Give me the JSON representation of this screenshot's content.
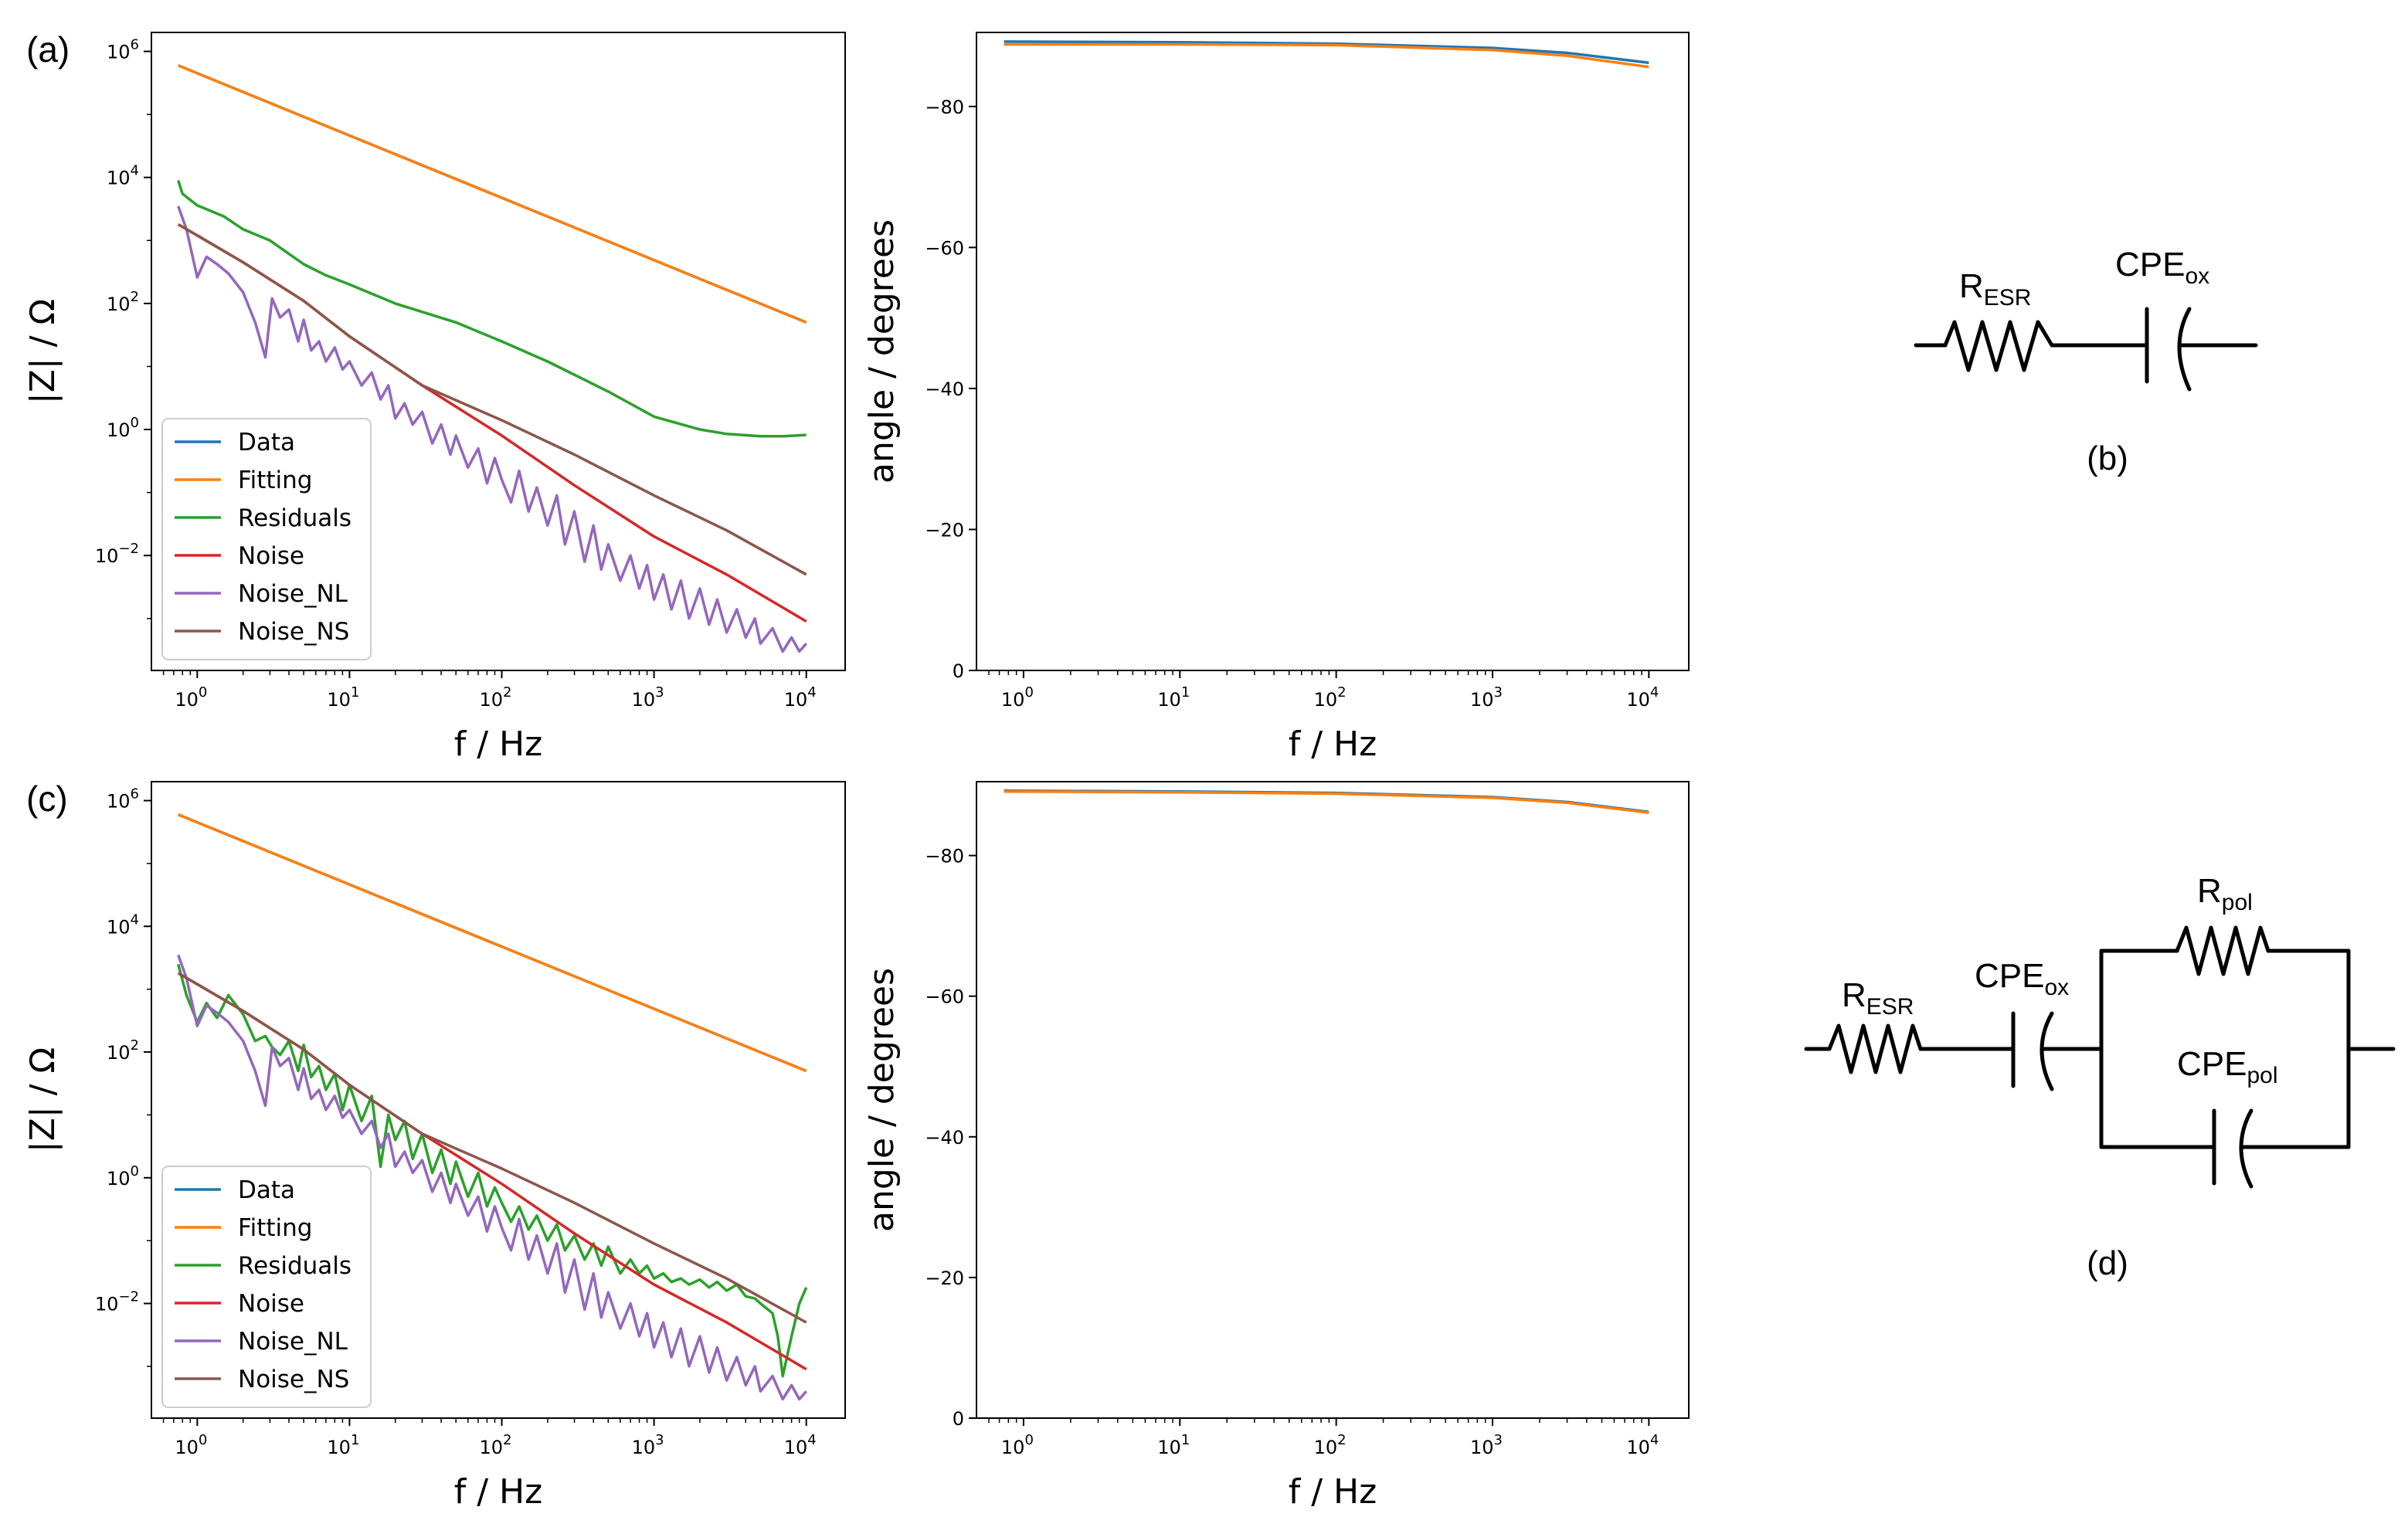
{
  "colors": {
    "Data": "#1f77b4",
    "Fitting": "#ff7f0e",
    "Residuals": "#2ca02c",
    "Noise": "#d62728",
    "Noise_NL": "#9467bd",
    "Noise_NS": "#8c564b"
  },
  "chart_data": [
    {
      "id": "a-mag",
      "panel": "(a)",
      "type": "line",
      "xscale": "log",
      "yscale": "log",
      "xlabel": "f / Hz",
      "ylabel": "|Z| / Ω",
      "xlim": [
        0.5,
        18000
      ],
      "ylim": [
        0.00015,
        2000000
      ],
      "xticks": [
        {
          "base": "10",
          "exp": "0",
          "v": 1
        },
        {
          "base": "10",
          "exp": "1",
          "v": 10
        },
        {
          "base": "10",
          "exp": "2",
          "v": 100
        },
        {
          "base": "10",
          "exp": "3",
          "v": 1000
        },
        {
          "base": "10",
          "exp": "4",
          "v": 10000
        }
      ],
      "yticks": [
        {
          "base": "10",
          "exp": "−2",
          "v": 0.01
        },
        {
          "base": "10",
          "exp": "0",
          "v": 1
        },
        {
          "base": "10",
          "exp": "2",
          "v": 100
        },
        {
          "base": "10",
          "exp": "4",
          "v": 10000
        },
        {
          "base": "10",
          "exp": "6",
          "v": 1000000
        }
      ],
      "legend": {
        "position": "lower-left",
        "entries": [
          "Data",
          "Fitting",
          "Residuals",
          "Noise",
          "Noise_NL",
          "Noise_NS"
        ]
      },
      "series": [
        {
          "name": "Data",
          "x": [
            0.75,
            10000
          ],
          "y": [
            600000,
            50
          ]
        },
        {
          "name": "Fitting",
          "x": [
            0.75,
            10000
          ],
          "y": [
            600000,
            50
          ]
        },
        {
          "name": "Residuals",
          "x": [
            0.75,
            0.8,
            1,
            1.5,
            2,
            3,
            5,
            7,
            10,
            20,
            50,
            100,
            200,
            500,
            1000,
            2000,
            3000,
            5000,
            7000,
            10000
          ],
          "y": [
            9000,
            5500,
            3600,
            2400,
            1500,
            1000,
            420,
            280,
            200,
            100,
            50,
            25,
            12,
            4,
            1.6,
            1,
            0.85,
            0.78,
            0.78,
            0.82
          ]
        },
        {
          "name": "Noise",
          "x": [
            0.75,
            1,
            2,
            5,
            10,
            30,
            100,
            300,
            1000,
            3000,
            10000
          ],
          "y": [
            1800,
            1200,
            450,
            110,
            30,
            5,
            0.8,
            0.13,
            0.02,
            0.005,
            0.0009
          ]
        },
        {
          "name": "Noise_NL",
          "x": [
            0.75,
            0.85,
            1,
            1.15,
            1.35,
            1.6,
            2,
            2.4,
            2.8,
            3.1,
            3.5,
            4,
            4.6,
            5,
            5.6,
            6.3,
            7,
            8,
            9,
            10,
            12,
            14,
            16,
            18,
            20,
            23,
            26,
            30,
            35,
            40,
            46,
            50,
            60,
            70,
            80,
            90,
            100,
            115,
            130,
            150,
            170,
            200,
            230,
            260,
            300,
            350,
            400,
            450,
            500,
            600,
            700,
            800,
            900,
            1000,
            1150,
            1300,
            1500,
            1700,
            2000,
            2300,
            2600,
            3000,
            3500,
            4000,
            4600,
            5000,
            6000,
            7000,
            8000,
            9000,
            10000
          ],
          "y": [
            3500,
            1500,
            260,
            550,
            420,
            300,
            150,
            50,
            14,
            120,
            60,
            80,
            25,
            55,
            18,
            25,
            12,
            20,
            9,
            12,
            5,
            8,
            3,
            5,
            1.5,
            2.6,
            1.2,
            1.9,
            0.6,
            1.2,
            0.4,
            0.8,
            0.25,
            0.5,
            0.14,
            0.35,
            0.16,
            0.07,
            0.22,
            0.05,
            0.12,
            0.03,
            0.09,
            0.015,
            0.05,
            0.008,
            0.03,
            0.006,
            0.015,
            0.004,
            0.01,
            0.003,
            0.007,
            0.002,
            0.005,
            0.0014,
            0.004,
            0.001,
            0.003,
            0.0008,
            0.002,
            0.0006,
            0.0014,
            0.0005,
            0.001,
            0.0004,
            0.0007,
            0.0003,
            0.0005,
            0.0003,
            0.0004
          ]
        },
        {
          "name": "Noise_NS",
          "x": [
            0.75,
            1,
            2,
            5,
            10,
            30,
            100,
            300,
            1000,
            3000,
            10000
          ],
          "y": [
            1800,
            1200,
            450,
            110,
            30,
            5,
            1.4,
            0.4,
            0.09,
            0.025,
            0.005
          ]
        }
      ]
    },
    {
      "id": "a-phase",
      "panel": "",
      "type": "line",
      "xscale": "log",
      "yscale": "linear",
      "xlabel": "f / Hz",
      "ylabel": "angle / degrees",
      "xlim": [
        0.5,
        18000
      ],
      "ylim": [
        0,
        -90.5
      ],
      "xticks": [
        {
          "base": "10",
          "exp": "0",
          "v": 1
        },
        {
          "base": "10",
          "exp": "1",
          "v": 10
        },
        {
          "base": "10",
          "exp": "2",
          "v": 100
        },
        {
          "base": "10",
          "exp": "3",
          "v": 1000
        },
        {
          "base": "10",
          "exp": "4",
          "v": 10000
        }
      ],
      "yticks": [
        {
          "label": "0",
          "v": 0
        },
        {
          "label": "−20",
          "v": -20
        },
        {
          "label": "−40",
          "v": -40
        },
        {
          "label": "−60",
          "v": -60
        },
        {
          "label": "−80",
          "v": -80
        }
      ],
      "series": [
        {
          "name": "Data",
          "x": [
            0.75,
            10,
            100,
            1000,
            3000,
            10000
          ],
          "y": [
            -89.2,
            -89.1,
            -88.9,
            -88.3,
            -87.6,
            -86.2
          ]
        },
        {
          "name": "Fitting",
          "x": [
            0.75,
            10,
            100,
            1000,
            3000,
            10000
          ],
          "y": [
            -88.8,
            -88.8,
            -88.7,
            -88.0,
            -87.2,
            -85.6
          ]
        }
      ]
    },
    {
      "id": "c-mag",
      "panel": "(c)",
      "type": "line",
      "xscale": "log",
      "yscale": "log",
      "xlabel": "f / Hz",
      "ylabel": "|Z| / Ω",
      "xlim": [
        0.5,
        18000
      ],
      "ylim": [
        0.00015,
        2000000
      ],
      "xticks": [
        {
          "base": "10",
          "exp": "0",
          "v": 1
        },
        {
          "base": "10",
          "exp": "1",
          "v": 10
        },
        {
          "base": "10",
          "exp": "2",
          "v": 100
        },
        {
          "base": "10",
          "exp": "3",
          "v": 1000
        },
        {
          "base": "10",
          "exp": "4",
          "v": 10000
        }
      ],
      "yticks": [
        {
          "base": "10",
          "exp": "−2",
          "v": 0.01
        },
        {
          "base": "10",
          "exp": "0",
          "v": 1
        },
        {
          "base": "10",
          "exp": "2",
          "v": 100
        },
        {
          "base": "10",
          "exp": "4",
          "v": 10000
        },
        {
          "base": "10",
          "exp": "6",
          "v": 1000000
        }
      ],
      "legend": {
        "position": "lower-left",
        "entries": [
          "Data",
          "Fitting",
          "Residuals",
          "Noise",
          "Noise_NL",
          "Noise_NS"
        ]
      },
      "series": [
        {
          "name": "Data",
          "x": [
            0.75,
            10000
          ],
          "y": [
            600000,
            50
          ]
        },
        {
          "name": "Fitting",
          "x": [
            0.75,
            10000
          ],
          "y": [
            600000,
            50
          ]
        },
        {
          "name": "Residuals",
          "x": [
            0.75,
            0.85,
            1,
            1.15,
            1.35,
            1.6,
            2,
            2.4,
            2.8,
            3.1,
            3.5,
            4,
            4.6,
            5,
            5.6,
            6.3,
            7,
            8,
            9,
            10,
            12,
            14,
            16,
            18,
            20,
            23,
            26,
            30,
            35,
            40,
            46,
            50,
            60,
            70,
            80,
            90,
            100,
            115,
            130,
            150,
            170,
            200,
            230,
            260,
            300,
            350,
            400,
            450,
            500,
            600,
            700,
            800,
            900,
            1000,
            1150,
            1300,
            1500,
            1700,
            2000,
            2300,
            2600,
            3000,
            3500,
            4000,
            4600,
            5000,
            6000,
            6500,
            7000,
            8000,
            9000,
            10000
          ],
          "y": [
            2500,
            800,
            300,
            600,
            350,
            800,
            400,
            150,
            180,
            120,
            90,
            150,
            50,
            130,
            40,
            60,
            25,
            45,
            12,
            30,
            8,
            20,
            1.5,
            10,
            4,
            8,
            2,
            5,
            1.2,
            2.8,
            0.8,
            1.8,
            0.5,
            1.2,
            0.35,
            0.7,
            0.4,
            0.2,
            0.35,
            0.15,
            0.25,
            0.1,
            0.18,
            0.07,
            0.12,
            0.05,
            0.09,
            0.04,
            0.08,
            0.03,
            0.05,
            0.03,
            0.04,
            0.025,
            0.03,
            0.022,
            0.025,
            0.02,
            0.024,
            0.018,
            0.022,
            0.016,
            0.02,
            0.013,
            0.012,
            0.01,
            0.007,
            0.003,
            0.0007,
            0.003,
            0.01,
            0.018
          ]
        },
        {
          "name": "Noise",
          "x": [
            0.75,
            1,
            2,
            5,
            10,
            30,
            100,
            300,
            1000,
            3000,
            10000
          ],
          "y": [
            1800,
            1200,
            450,
            110,
            30,
            5,
            0.8,
            0.13,
            0.02,
            0.005,
            0.0009
          ]
        },
        {
          "name": "Noise_NL",
          "x": [
            0.75,
            0.85,
            1,
            1.15,
            1.35,
            1.6,
            2,
            2.4,
            2.8,
            3.1,
            3.5,
            4,
            4.6,
            5,
            5.6,
            6.3,
            7,
            8,
            9,
            10,
            12,
            14,
            16,
            18,
            20,
            23,
            26,
            30,
            35,
            40,
            46,
            50,
            60,
            70,
            80,
            90,
            100,
            115,
            130,
            150,
            170,
            200,
            230,
            260,
            300,
            350,
            400,
            450,
            500,
            600,
            700,
            800,
            900,
            1000,
            1150,
            1300,
            1500,
            1700,
            2000,
            2300,
            2600,
            3000,
            3500,
            4000,
            4600,
            5000,
            6000,
            7000,
            8000,
            9000,
            10000
          ],
          "y": [
            3500,
            1500,
            260,
            550,
            420,
            300,
            150,
            50,
            14,
            120,
            60,
            80,
            25,
            55,
            18,
            25,
            12,
            20,
            9,
            12,
            5,
            8,
            3,
            5,
            1.5,
            2.6,
            1.2,
            1.9,
            0.6,
            1.2,
            0.4,
            0.8,
            0.25,
            0.5,
            0.14,
            0.35,
            0.16,
            0.07,
            0.22,
            0.05,
            0.12,
            0.03,
            0.09,
            0.015,
            0.05,
            0.008,
            0.03,
            0.006,
            0.015,
            0.004,
            0.01,
            0.003,
            0.007,
            0.002,
            0.005,
            0.0014,
            0.004,
            0.001,
            0.003,
            0.0008,
            0.002,
            0.0006,
            0.0014,
            0.0005,
            0.001,
            0.0004,
            0.0007,
            0.0003,
            0.0005,
            0.0003,
            0.0004
          ]
        },
        {
          "name": "Noise_NS",
          "x": [
            0.75,
            1,
            2,
            5,
            10,
            30,
            100,
            300,
            1000,
            3000,
            10000
          ],
          "y": [
            1800,
            1200,
            450,
            110,
            30,
            5,
            1.4,
            0.4,
            0.09,
            0.025,
            0.005
          ]
        }
      ]
    },
    {
      "id": "c-phase",
      "panel": "",
      "type": "line",
      "xscale": "log",
      "yscale": "linear",
      "xlabel": "f / Hz",
      "ylabel": "angle / degrees",
      "xlim": [
        0.5,
        18000
      ],
      "ylim": [
        0,
        -90.5
      ],
      "xticks": [
        {
          "base": "10",
          "exp": "0",
          "v": 1
        },
        {
          "base": "10",
          "exp": "1",
          "v": 10
        },
        {
          "base": "10",
          "exp": "2",
          "v": 100
        },
        {
          "base": "10",
          "exp": "3",
          "v": 1000
        },
        {
          "base": "10",
          "exp": "4",
          "v": 10000
        }
      ],
      "yticks": [
        {
          "label": "0",
          "v": 0
        },
        {
          "label": "−20",
          "v": -20
        },
        {
          "label": "−40",
          "v": -40
        },
        {
          "label": "−60",
          "v": -60
        },
        {
          "label": "−80",
          "v": -80
        }
      ],
      "series": [
        {
          "name": "Data",
          "x": [
            0.75,
            10,
            100,
            1000,
            3000,
            10000
          ],
          "y": [
            -89.2,
            -89.1,
            -88.9,
            -88.3,
            -87.6,
            -86.2
          ]
        },
        {
          "name": "Fitting",
          "x": [
            0.75,
            10,
            100,
            1000,
            3000,
            10000
          ],
          "y": [
            -89.1,
            -89.0,
            -88.8,
            -88.2,
            -87.5,
            -86.1
          ]
        }
      ]
    }
  ],
  "circuits": {
    "b": {
      "caption": "(b)",
      "r_esr": {
        "main": "R",
        "sub": "ESR"
      },
      "cpe_ox": {
        "main": "CPE",
        "sub": "ox"
      }
    },
    "d": {
      "caption": "(d)",
      "r_esr": {
        "main": "R",
        "sub": "ESR"
      },
      "cpe_ox": {
        "main": "CPE",
        "sub": "ox"
      },
      "r_pol": {
        "main": "R",
        "sub": "pol"
      },
      "cpe_pol": {
        "main": "CPE",
        "sub": "pol"
      }
    }
  }
}
